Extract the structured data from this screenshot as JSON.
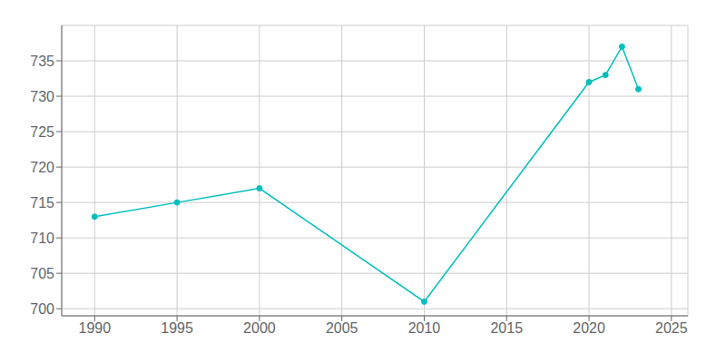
{
  "chart_data": {
    "type": "line",
    "x": [
      1990,
      1995,
      2000,
      2010,
      2020,
      2021,
      2022,
      2023
    ],
    "values": [
      713,
      715,
      717,
      701,
      732,
      733,
      737,
      731
    ],
    "color": "#00BFBF",
    "marker": "circle",
    "xlim": [
      1988,
      2026
    ],
    "ylim": [
      699,
      740
    ],
    "xticks": [
      1990,
      1995,
      2000,
      2005,
      2010,
      2015,
      2020,
      2025
    ],
    "yticks": [
      700,
      705,
      710,
      715,
      720,
      725,
      730,
      735
    ],
    "grid": true
  }
}
